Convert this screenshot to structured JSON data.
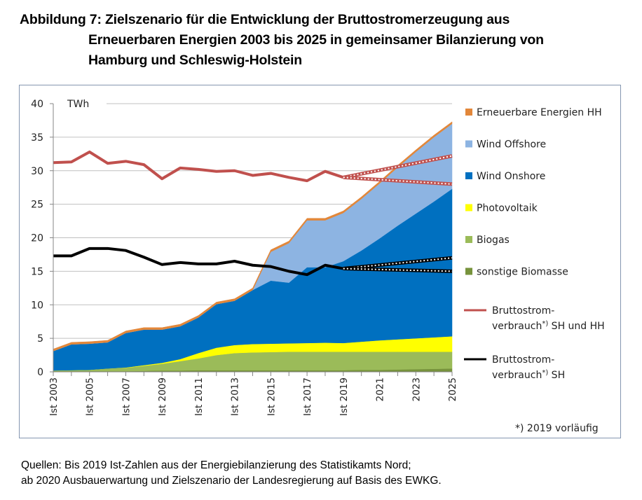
{
  "title": {
    "line1": "Abbildung 7: Zielszenario für die Entwicklung der Bruttostromerzeugung aus",
    "line2": "Erneuerbaren Energien 2003 bis 2025 in gemeinsamer Bilanzierung von",
    "line3": "Hamburg und Schleswig-Holstein"
  },
  "source": {
    "line1": "Quellen: Bis 2019 Ist-Zahlen aus der Energiebilanzierung des Statistikamts Nord;",
    "line2": "ab 2020 Ausbauerwartung und Zielszenario der Landesregierung auf Basis des EWKG."
  },
  "chart_data": {
    "type": "area",
    "stacked": true,
    "title": "Zielszenario für die Entwicklung der Bruttostromerzeugung aus Erneuerbaren Energien 2003 bis 2025 in gemeinsamer Bilanzierung von Hamburg und Schleswig-Holstein",
    "ylabel": "TWh",
    "xlabel": "",
    "ylim": [
      0,
      40
    ],
    "yticks": [
      0,
      5,
      10,
      15,
      20,
      25,
      30,
      35,
      40
    ],
    "grid": true,
    "legend_position": "right",
    "x": [
      2003,
      2004,
      2005,
      2006,
      2007,
      2008,
      2009,
      2010,
      2011,
      2012,
      2013,
      2014,
      2015,
      2016,
      2017,
      2018,
      2019,
      2020,
      2021,
      2022,
      2023,
      2024,
      2025
    ],
    "xtick_labels": [
      "Ist 2003",
      "Ist 2005",
      "Ist 2007",
      "Ist 2009",
      "Ist 2011",
      "Ist 2013",
      "Ist 2015",
      "Ist 2017",
      "Ist 2019",
      "2021",
      "2023",
      "2025"
    ],
    "xtick_years": [
      2003,
      2005,
      2007,
      2009,
      2011,
      2013,
      2015,
      2017,
      2019,
      2021,
      2023,
      2025
    ],
    "series": [
      {
        "name": "sonstige Biomasse",
        "color": "#77933c",
        "values": [
          0.1,
          0.1,
          0.1,
          0.1,
          0.1,
          0.15,
          0.2,
          0.2,
          0.25,
          0.25,
          0.25,
          0.25,
          0.25,
          0.25,
          0.25,
          0.25,
          0.25,
          0.3,
          0.3,
          0.35,
          0.4,
          0.45,
          0.5
        ]
      },
      {
        "name": "Biogas",
        "color": "#9bbb59",
        "values": [
          0.1,
          0.15,
          0.2,
          0.4,
          0.5,
          0.75,
          1.0,
          1.4,
          1.75,
          2.25,
          2.55,
          2.65,
          2.7,
          2.75,
          2.75,
          2.75,
          2.75,
          2.7,
          2.7,
          2.65,
          2.6,
          2.55,
          2.5
        ]
      },
      {
        "name": "Photovoltaik",
        "color": "#ffff00",
        "values": [
          0.0,
          0.0,
          0.0,
          0.0,
          0.05,
          0.1,
          0.15,
          0.3,
          0.8,
          1.1,
          1.2,
          1.25,
          1.25,
          1.25,
          1.3,
          1.35,
          1.3,
          1.5,
          1.7,
          1.85,
          2.0,
          2.15,
          2.3
        ]
      },
      {
        "name": "Wind Onshore",
        "color": "#0070c0",
        "values": [
          2.9,
          3.85,
          3.9,
          3.9,
          5.15,
          5.3,
          4.95,
          4.9,
          5.3,
          6.5,
          6.6,
          8.05,
          9.4,
          9.05,
          11.3,
          11.25,
          12.2,
          13.6,
          15.2,
          16.95,
          18.6,
          20.25,
          22.0
        ]
      },
      {
        "name": "Wind Offshore",
        "color": "#8db4e2",
        "values": [
          0,
          0,
          0,
          0,
          0,
          0,
          0,
          0,
          0,
          0,
          0,
          0,
          4.3,
          5.9,
          7.0,
          7.0,
          7.2,
          7.7,
          8.2,
          8.7,
          9.2,
          9.6,
          9.7
        ]
      },
      {
        "name": "Erneuerbare Energien HH",
        "color": "#e2873a",
        "values": [
          0.3,
          0.3,
          0.3,
          0.3,
          0.3,
          0.3,
          0.3,
          0.3,
          0.3,
          0.3,
          0.3,
          0.3,
          0.3,
          0.3,
          0.3,
          0.3,
          0.3,
          0.3,
          0.3,
          0.3,
          0.3,
          0.3,
          0.3
        ]
      }
    ],
    "lines": [
      {
        "name": "Bruttostrom-verbrauch*) SH und HH",
        "color": "#c0504d",
        "values": [
          31.2,
          31.3,
          32.8,
          31.1,
          31.4,
          30.9,
          28.8,
          30.4,
          30.2,
          29.9,
          30.0,
          29.3,
          29.6,
          29.0,
          28.5,
          29.9,
          29.0
        ],
        "projection_from": 2019,
        "projection_upper_2025": 32.2,
        "projection_lower_2025": 28.0
      },
      {
        "name": "Bruttostrom-verbrauch*) SH",
        "color": "#000000",
        "values": [
          17.3,
          17.3,
          18.4,
          18.4,
          18.1,
          17.1,
          16.0,
          16.3,
          16.1,
          16.1,
          16.5,
          15.9,
          15.7,
          15.0,
          14.5,
          15.9,
          15.4
        ],
        "projection_from": 2019,
        "projection_upper_2025": 17.0,
        "projection_lower_2025": 15.0
      }
    ],
    "legend": {
      "areas": [
        "Erneuerbare Energien HH",
        "Wind Offshore",
        "Wind Onshore",
        "Photovoltaik",
        "Biogas",
        "sonstige Biomasse"
      ],
      "lines": [
        {
          "line1": "Bruttostrom-",
          "line2": "verbrauch",
          "sup": "*)",
          "line2_rest": " SH und HH"
        },
        {
          "line1": "Bruttostrom-",
          "line2": "verbrauch",
          "sup": "*)",
          "line2_rest": " SH"
        }
      ]
    },
    "footnote": "*) 2019 vorläufig"
  }
}
